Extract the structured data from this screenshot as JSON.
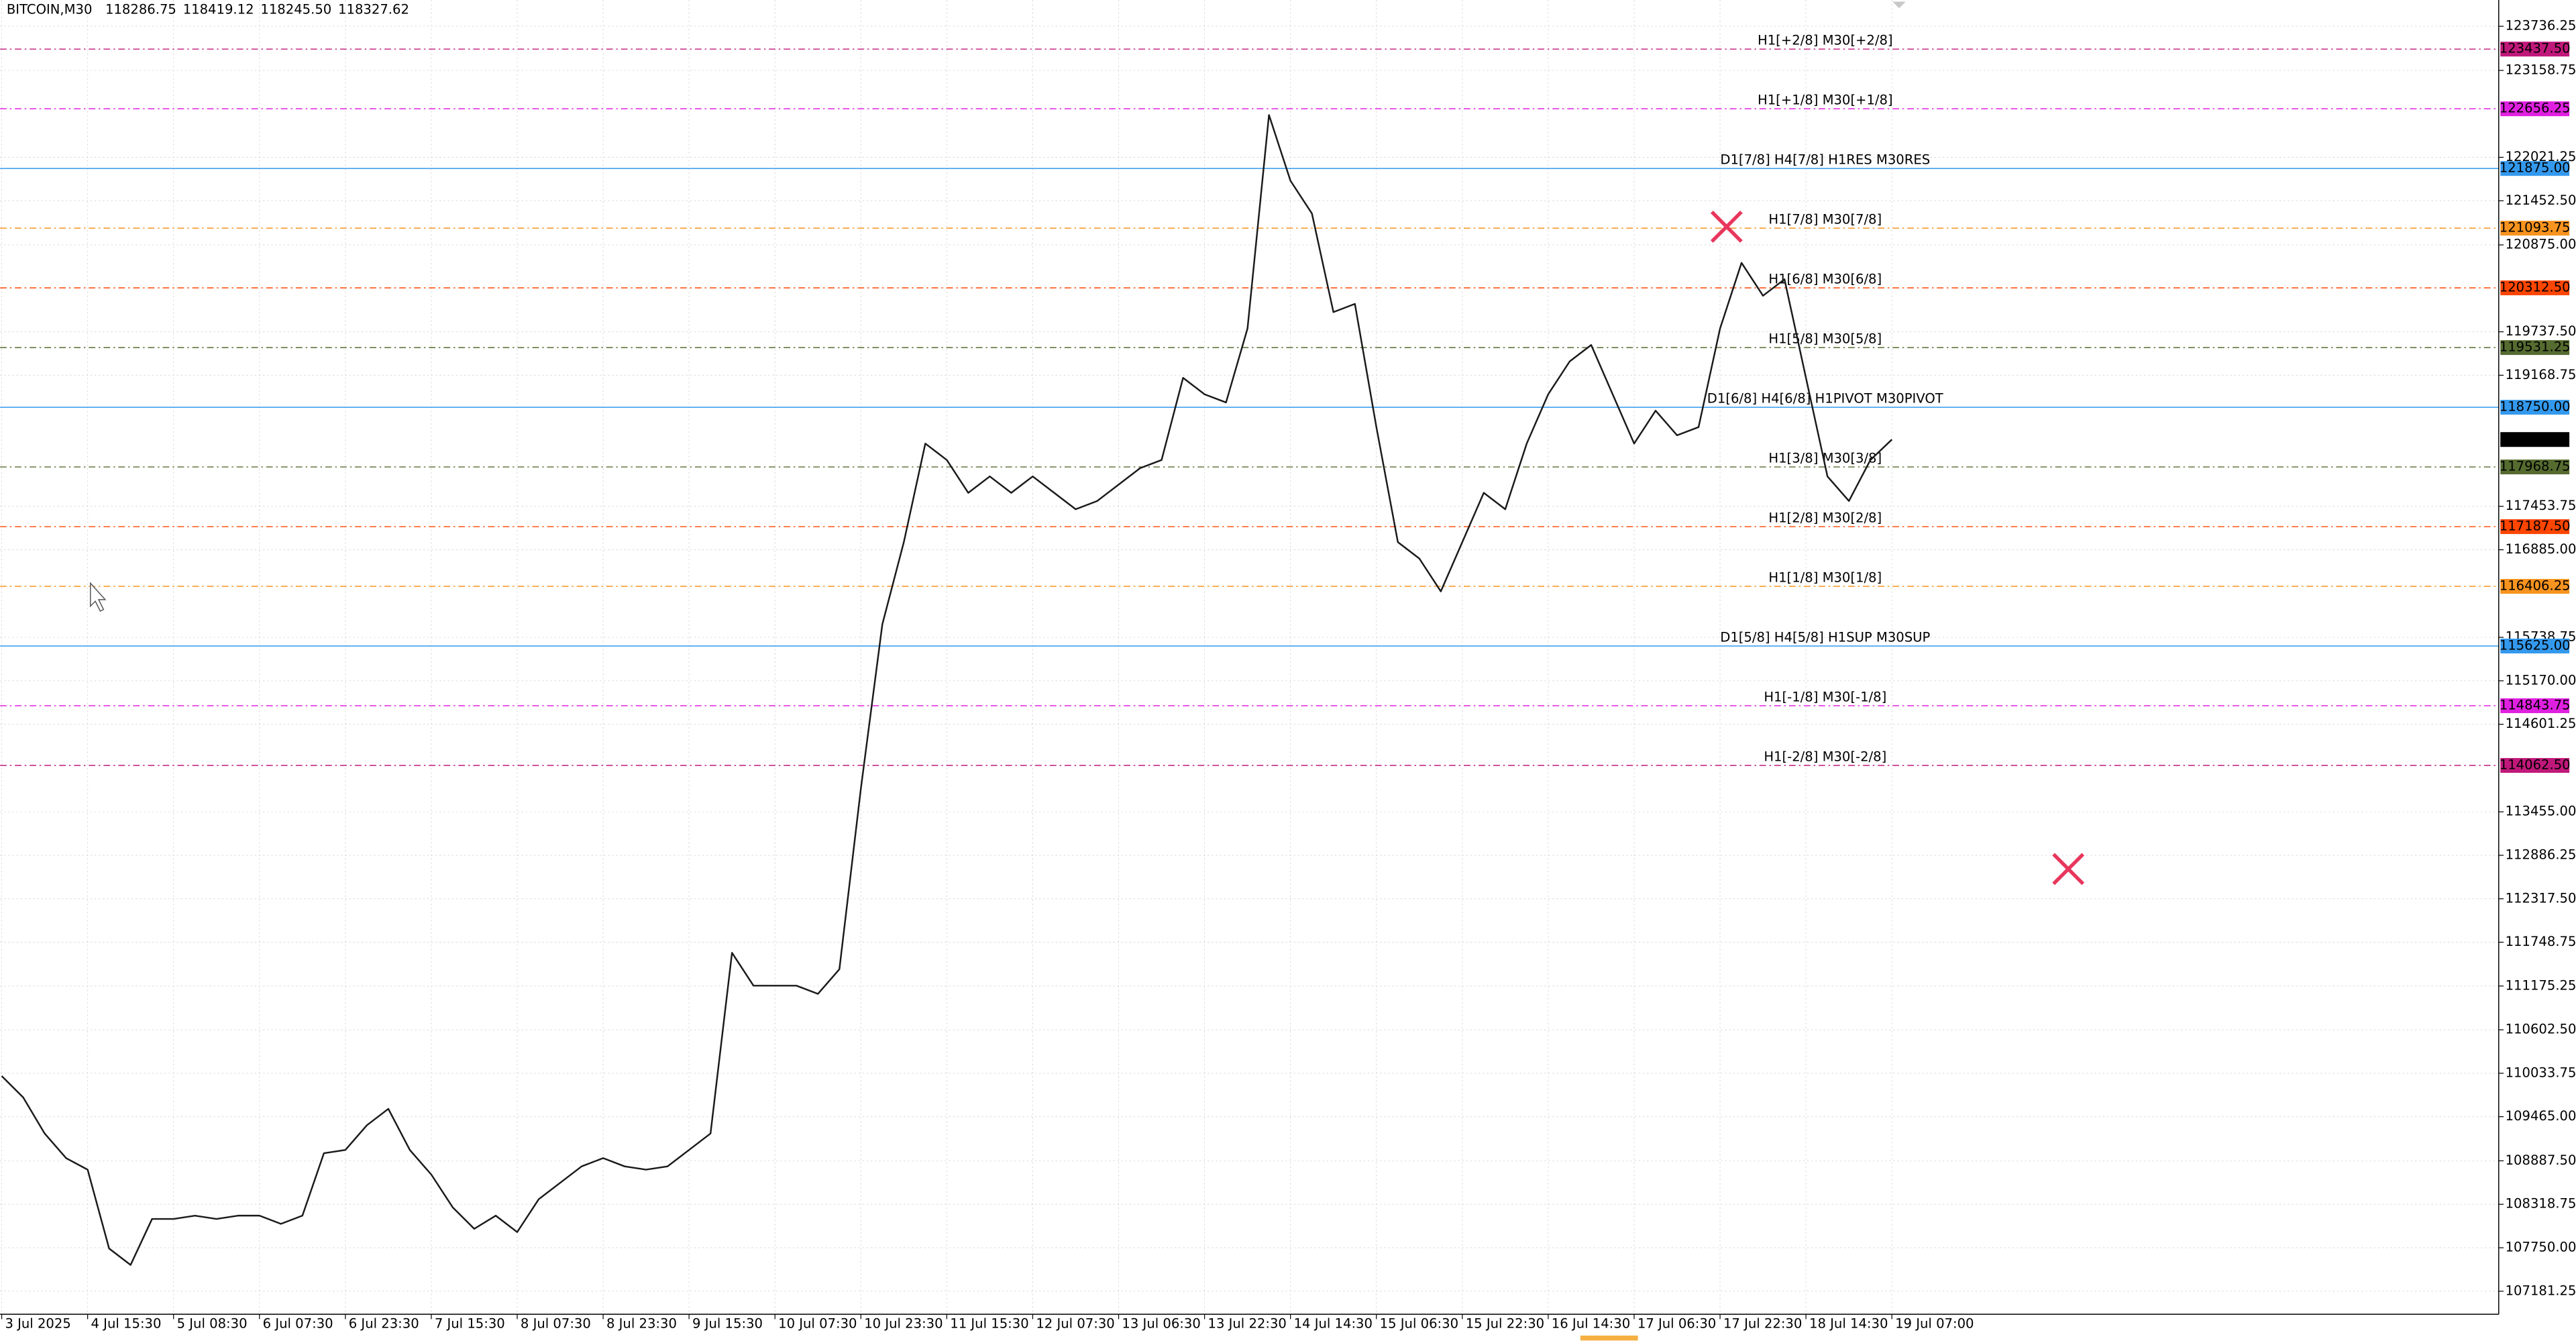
{
  "chart_data": {
    "type": "line",
    "symbol": "BITCOIN,M30",
    "ohlc": [
      118286.75,
      118419.12,
      {
        "value": 118245.5,
        "label": "118245.50"
      },
      118327.62
    ],
    "categories": [
      "3 Jul 2025",
      null,
      null,
      null,
      "4 Jul 15:30",
      null,
      null,
      null,
      "5 Jul 08:30",
      null,
      null,
      null,
      "6 Jul 07:30",
      null,
      null,
      null,
      "6 Jul 23:30",
      null,
      null,
      null,
      "7 Jul 15:30",
      null,
      null,
      null,
      "8 Jul 07:30",
      null,
      null,
      null,
      "8 Jul 23:30",
      null,
      null,
      null,
      "9 Jul 15:30",
      null,
      null,
      null,
      "10 Jul 07:30",
      null,
      null,
      null,
      "10 Jul 23:30",
      null,
      null,
      null,
      "11 Jul 15:30",
      null,
      null,
      null,
      "12 Jul 07:30",
      null,
      null,
      null,
      "13 Jul 06:30",
      null,
      null,
      null,
      "13 Jul 22:30",
      null,
      null,
      null,
      "14 Jul 14:30",
      null,
      null,
      null,
      "15 Jul 06:30",
      null,
      null,
      null,
      "15 Jul 22:30",
      null,
      null,
      null,
      "16 Jul 14:30",
      null,
      null,
      null,
      "17 Jul 06:30",
      null,
      null,
      null,
      "17 Jul 22:30",
      null,
      null,
      null,
      "18 Jul 14:30",
      null,
      null,
      null,
      "19 Jul 07:00"
    ],
    "series": [
      {
        "name": "BITCOIN,M30",
        "color": "#1a1a1a",
        "values": [
          109998,
          109718,
          109245,
          108923,
          108772,
          107740,
          107525,
          108127,
          108127,
          108170,
          108127,
          108170,
          108170,
          108063,
          108170,
          108987,
          109030,
          109353,
          109568,
          109030,
          108708,
          108278,
          107998,
          108170,
          107955,
          108385,
          108600,
          108815,
          108923,
          108815,
          108772,
          108815,
          109030,
          109245,
          111610,
          111180,
          111180,
          111180,
          111073,
          111395,
          113760,
          115910,
          116985,
          118275,
          118060,
          117630,
          117845,
          117630,
          117845,
          117630,
          117415,
          117523,
          117738,
          117953,
          118060,
          119135,
          118920,
          118813,
          119780,
          122575,
          121715,
          121285,
          119995,
          120103,
          118490,
          116985,
          116770,
          116340,
          116985,
          117630,
          117415,
          118275,
          118920,
          119350,
          119565,
          118920,
          118275,
          118705,
          118383,
          118490,
          119780,
          120640,
          120210,
          120425,
          119135,
          117845,
          117523,
          118060,
          118327.62
        ]
      }
    ],
    "ylim": [
      106880,
      124080
    ],
    "yticks": [
      123736.25,
      123158.75,
      {
        "value": 122021.25,
        "label": "122021.25"
      },
      {
        "value": 121452.5,
        "label": "121452.50"
      },
      {
        "value": 120875,
        "label": "120875.00"
      },
      {
        "value": 119737.5,
        "label": "119737.50"
      },
      119168.75,
      {
        "value": 117453.75,
        "label": "117453.75"
      },
      {
        "value": 116885,
        "label": "116885.00"
      },
      115738.75,
      {
        "value": 115170,
        "label": "115170.00"
      },
      114601.25,
      {
        "value": 113455,
        "label": "113455.00"
      },
      112886.25,
      {
        "value": 112317.5,
        "label": "112317.50"
      },
      111748.75,
      111175.25,
      {
        "value": 110602.5,
        "label": "110602.50"
      },
      110033.75,
      {
        "value": 109465,
        "label": "109465.00"
      },
      {
        "value": 108887.5,
        "label": "108887.50"
      },
      108318.75,
      {
        "value": 107750,
        "label": "107750.00"
      },
      107181.25
    ],
    "grid": true,
    "levels": [
      {
        "name": "H1[+2/8] M30[+2/8]",
        "value": 123437.5,
        "value_label": "123437.50",
        "color": "#c0187a",
        "dashed": true
      },
      {
        "name": "H1[+1/8] M30[+1/8]",
        "value": 122656.25,
        "color": "#e020e0",
        "dashed": true
      },
      {
        "name": "D1[7/8] H4[7/8] H1RES M30RES",
        "value": 121875,
        "value_label": "121875.00",
        "color": "#3399ee",
        "dashed": false
      },
      {
        "name": "H1[7/8] M30[7/8]",
        "value": 121093.75,
        "color": "#f7931e",
        "dashed": true
      },
      {
        "name": "H1[6/8] M30[6/8]",
        "value": 120312.5,
        "value_label": "120312.50",
        "color": "#ff4500",
        "dashed": true
      },
      {
        "name": "H1[5/8] M30[5/8]",
        "value": 119531.25,
        "color": "#556b2f",
        "dashed": true
      },
      {
        "name": "D1[6/8] H4[6/8] H1PIVOT M30PIVOT",
        "value": 118750,
        "value_label": "118750.00",
        "color": "#3399ee",
        "dashed": false
      },
      {
        "name": "H1[3/8] M30[3/8]",
        "value": 117968.75,
        "color": "#556b2f",
        "dashed": true
      },
      {
        "name": "H1[2/8] M30[2/8]",
        "value": 117187.5,
        "value_label": "117187.50",
        "color": "#ff4500",
        "dashed": true
      },
      {
        "name": "H1[1/8] M30[1/8]",
        "value": 116406.25,
        "color": "#f7931e",
        "dashed": true
      },
      {
        "name": "D1[5/8] H4[5/8] H1SUP M30SUP",
        "value": 115625,
        "value_label": "115625.00",
        "color": "#3399ee",
        "dashed": false
      },
      {
        "name": "H1[-1/8] M30[-1/8]",
        "value": 114843.75,
        "color": "#e020e0",
        "dashed": true
      },
      {
        "name": "H1[-2/8] M30[-2/8]",
        "value": 114062.5,
        "value_label": "114062.50",
        "color": "#c0187a",
        "dashed": true
      }
    ],
    "last_price": 118327.62
  }
}
